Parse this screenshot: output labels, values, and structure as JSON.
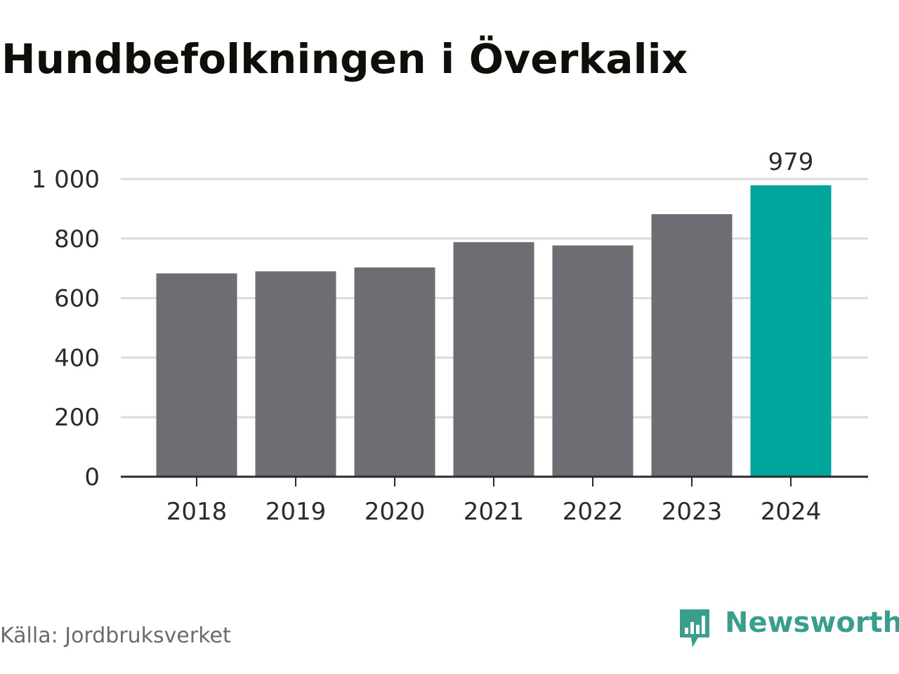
{
  "title": "Hundbefolkningen i Överkalix",
  "source": "Källa: Jordbruksverket",
  "brand": {
    "name": "Newsworthy",
    "color": "#3a9e8f",
    "icon": "newsworthy-logo-icon"
  },
  "colors": {
    "bar": "#6e6d74",
    "highlight": "#00a69c",
    "grid": "#dcdcdc",
    "axis": "#2b2b2b"
  },
  "chart_data": {
    "type": "bar",
    "title": "Hundbefolkningen i Överkalix",
    "xlabel": "",
    "ylabel": "",
    "categories": [
      "2018",
      "2019",
      "2020",
      "2021",
      "2022",
      "2023",
      "2024"
    ],
    "values": [
      683,
      690,
      703,
      788,
      777,
      882,
      979
    ],
    "highlight_index": 6,
    "data_labels": [
      {
        "index": 6,
        "text": "979"
      }
    ],
    "ylim": [
      0,
      1000
    ],
    "yticks": [
      0,
      200,
      400,
      600,
      800,
      1000
    ],
    "ytick_labels": [
      "0",
      "200",
      "400",
      "600",
      "800",
      "1 000"
    ],
    "grid": true,
    "legend": "none"
  }
}
